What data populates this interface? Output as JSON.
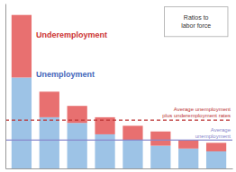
{
  "chart_data": {
    "type": "bar",
    "stacked": true,
    "categories": [
      null,
      null,
      null,
      null,
      null,
      null,
      null,
      null
    ],
    "series": [
      {
        "color": "#9DC3E6",
        "values": [
          32,
          18,
          16,
          12,
          10,
          8,
          7,
          6
        ]
      },
      {
        "color": "#E87070",
        "values": [
          22,
          9,
          6,
          6,
          5,
          5,
          3,
          3
        ]
      }
    ],
    "ylim": [
      0,
      58
    ],
    "yticks": [],
    "grid": false,
    "tick_labels": false,
    "reference_lines": [
      {
        "value": 10,
        "label": "Average\nunemployment",
        "color": "#8888CC",
        "line_style": "solid"
      },
      {
        "value": 17,
        "label": "Average unemployment\nplus underemployment rates",
        "color": "#BB3333",
        "line_style": "dashed"
      }
    ],
    "annotations": [
      {
        "text": "Underemployment",
        "color": "#CC3333"
      },
      {
        "text": "Unemployment",
        "color": "#4466BB"
      },
      {
        "text": "Ratios to\nlabor force"
      }
    ]
  }
}
